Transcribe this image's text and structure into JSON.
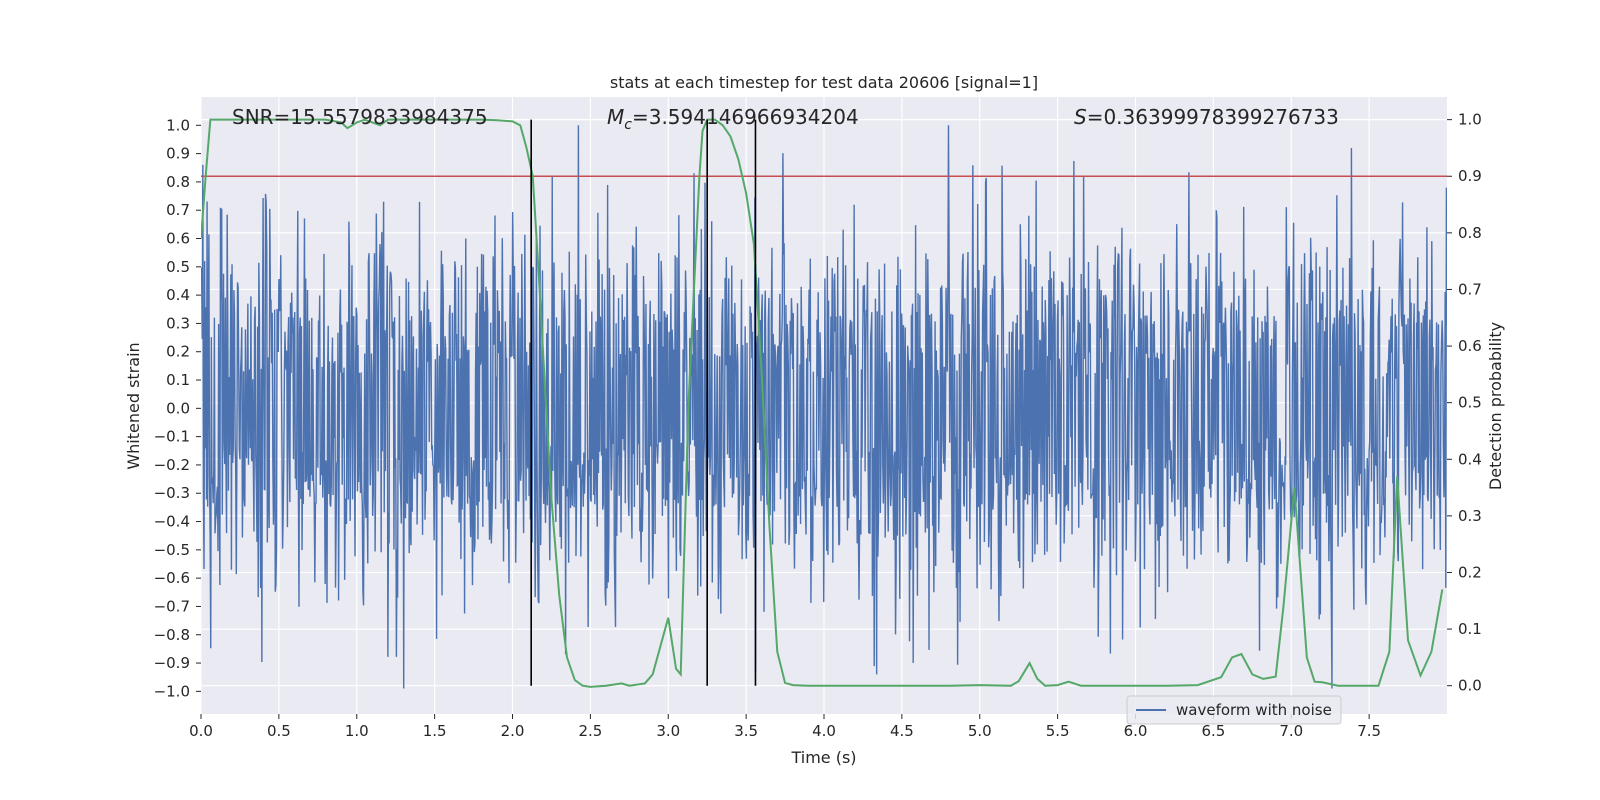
{
  "chart_data": {
    "type": "line",
    "title": "stats at each timestep for test data 20606 [signal=1]",
    "xlabel": "Time (s)",
    "ylabel_left": "Whitened strain",
    "ylabel_right": "Detection probability",
    "xlim": [
      0.0,
      8.0
    ],
    "ylim_left": [
      -1.08,
      1.1
    ],
    "ylim_right": [
      -0.05,
      1.04
    ],
    "x_ticks": [
      0.0,
      0.5,
      1.0,
      1.5,
      2.0,
      2.5,
      3.0,
      3.5,
      4.0,
      4.5,
      5.0,
      5.5,
      6.0,
      6.5,
      7.0,
      7.5
    ],
    "x_tick_labels": [
      "0.0",
      "0.5",
      "1.0",
      "1.5",
      "2.0",
      "2.5",
      "3.0",
      "3.5",
      "4.0",
      "4.5",
      "5.0",
      "5.5",
      "6.0",
      "6.5",
      "7.0",
      "7.5"
    ],
    "y_left_ticks": [
      1.0,
      0.9,
      0.8,
      0.7,
      0.6,
      0.5,
      0.4,
      0.3,
      0.2,
      0.1,
      0.0,
      -0.1,
      -0.2,
      -0.3,
      -0.4,
      -0.5,
      -0.6,
      -0.7,
      -0.8,
      -0.9,
      -1.0
    ],
    "y_left_tick_labels": [
      "1.0",
      "0.9",
      "0.8",
      "0.7",
      "0.6",
      "0.5",
      "0.4",
      "0.3",
      "0.2",
      "0.1",
      "0.0",
      "−0.1",
      "−0.2",
      "−0.3",
      "−0.4",
      "−0.5",
      "−0.6",
      "−0.7",
      "−0.8",
      "−0.9",
      "−1.0"
    ],
    "y_right_ticks": [
      1.0,
      0.9,
      0.8,
      0.7,
      0.6,
      0.5,
      0.4,
      0.3,
      0.2,
      0.1,
      0.0
    ],
    "y_right_tick_labels": [
      "1.0",
      "0.9",
      "0.8",
      "0.7",
      "0.6",
      "0.5",
      "0.4",
      "0.3",
      "0.2",
      "0.1",
      "0.0"
    ],
    "annotations": {
      "snr": "SNR=15.5579833984375",
      "mc_symbol": "M",
      "mc_subscript": "c",
      "mc_value": "=3.594146966934204",
      "s_symbol": "S",
      "s_value": "=0.36399978399276733"
    },
    "legend": {
      "label": "waveform with noise",
      "placement": "lower-right"
    },
    "threshold": {
      "axis": "right",
      "value": 0.9,
      "color": "#c44e52"
    },
    "vertical_markers": [
      2.12,
      3.25,
      3.56
    ],
    "waveform": {
      "name": "waveform with noise",
      "axis": "left",
      "color": "#4c72b0",
      "t_start": 0.0,
      "t_end": 8.0,
      "n_samples": 2048,
      "typical_peak": 0.45,
      "max_peak": 1.0,
      "min_trough": -0.99
    },
    "probability": {
      "name": "detection probability",
      "axis": "right",
      "color": "#55a868",
      "x": [
        0.0,
        0.03,
        0.06,
        0.1,
        0.15,
        0.2,
        0.3,
        0.4,
        0.5,
        0.6,
        0.7,
        0.8,
        0.9,
        0.94,
        1.0,
        1.05,
        1.1,
        1.15,
        1.2,
        1.3,
        1.4,
        1.5,
        1.6,
        1.7,
        1.8,
        1.9,
        2.0,
        2.05,
        2.09,
        2.13,
        2.17,
        2.21,
        2.25,
        2.3,
        2.35,
        2.4,
        2.45,
        2.5,
        2.6,
        2.7,
        2.75,
        2.8,
        2.85,
        2.9,
        2.95,
        3.0,
        3.05,
        3.08,
        3.13,
        3.2,
        3.22,
        3.25,
        3.3,
        3.35,
        3.4,
        3.45,
        3.5,
        3.55,
        3.6,
        3.65,
        3.7,
        3.75,
        3.8,
        3.9,
        4.0,
        4.2,
        4.4,
        4.6,
        4.8,
        5.0,
        5.2,
        5.25,
        5.32,
        5.37,
        5.42,
        5.5,
        5.57,
        5.65,
        5.8,
        6.0,
        6.2,
        6.4,
        6.55,
        6.62,
        6.68,
        6.75,
        6.82,
        6.9,
        6.95,
        7.02,
        7.1,
        7.15,
        7.2,
        7.3,
        7.4,
        7.5,
        7.56,
        7.63,
        7.68,
        7.75,
        7.83,
        7.9,
        7.97
      ],
      "y": [
        0.79,
        0.9,
        1.0,
        1.0,
        1.0,
        1.0,
        1.0,
        1.0,
        1.0,
        1.0,
        1.0,
        1.0,
        0.995,
        0.985,
        0.995,
        1.0,
        0.995,
        0.99,
        1.0,
        1.0,
        1.0,
        1.0,
        1.0,
        1.0,
        1.0,
        0.999,
        0.997,
        0.99,
        0.95,
        0.9,
        0.72,
        0.52,
        0.33,
        0.16,
        0.05,
        0.01,
        0.0,
        -0.002,
        0.0,
        0.004,
        0.0,
        0.002,
        0.004,
        0.02,
        0.07,
        0.12,
        0.03,
        0.02,
        0.5,
        0.9,
        0.98,
        1.0,
        1.0,
        0.99,
        0.97,
        0.93,
        0.87,
        0.78,
        0.55,
        0.28,
        0.06,
        0.005,
        0.001,
        0.0,
        0.0,
        0.0,
        0.0,
        0.0,
        0.0,
        0.001,
        0.0,
        0.008,
        0.04,
        0.012,
        0.0,
        0.001,
        0.007,
        0.0,
        0.0,
        0.0,
        0.0,
        0.001,
        0.015,
        0.05,
        0.056,
        0.02,
        0.012,
        0.016,
        0.14,
        0.35,
        0.05,
        0.007,
        0.006,
        0.0,
        0.0,
        0.0,
        0.0,
        0.06,
        0.37,
        0.08,
        0.018,
        0.06,
        0.17
      ]
    }
  }
}
